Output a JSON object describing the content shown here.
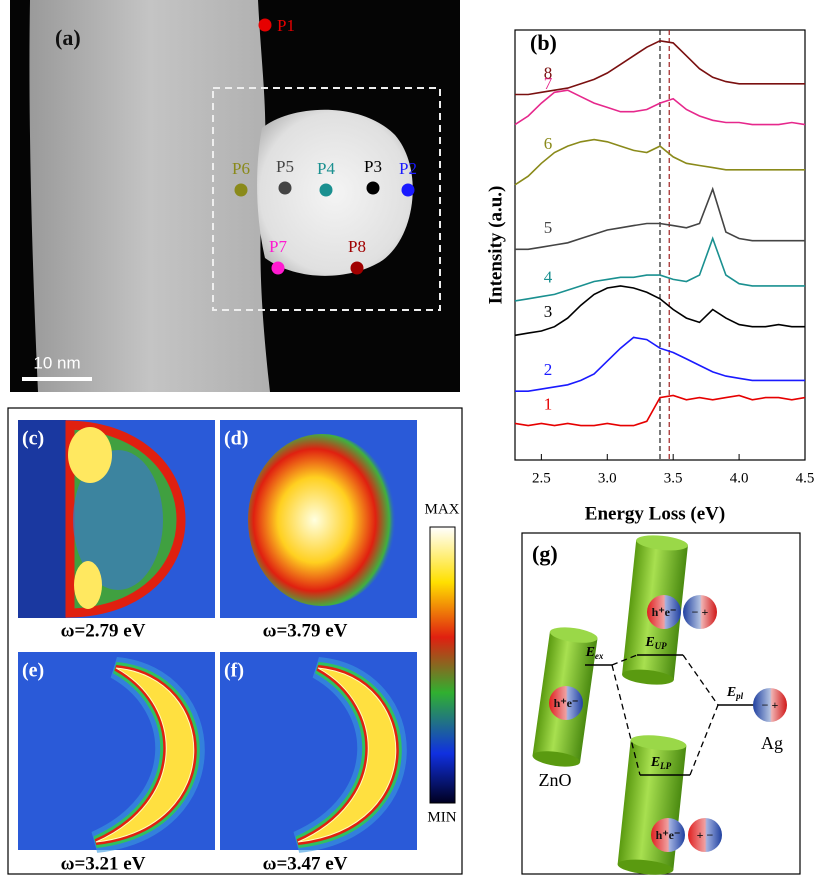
{
  "panel_a": {
    "label": "(a)",
    "scale_bar": "10 nm",
    "points": [
      {
        "label": "P1",
        "color": "#e60000"
      },
      {
        "label": "P2",
        "color": "#1a1aff"
      },
      {
        "label": "P3",
        "color": "#000000"
      },
      {
        "label": "P4",
        "color": "#1a9090"
      },
      {
        "label": "P5",
        "color": "#444444"
      },
      {
        "label": "P6",
        "color": "#8a8a1a"
      },
      {
        "label": "P7",
        "color": "#ff1ad0"
      },
      {
        "label": "P8",
        "color": "#a00000"
      }
    ]
  },
  "chart_data": {
    "type": "line",
    "label": "(b)",
    "x_label": "Energy Loss (eV)",
    "y_label": "Intensity (a.u.)",
    "x": [
      2.3,
      2.4,
      2.5,
      2.6,
      2.7,
      2.8,
      2.9,
      3.0,
      3.1,
      3.2,
      3.3,
      3.4,
      3.5,
      3.6,
      3.7,
      3.8,
      3.9,
      4.0,
      4.1,
      4.2,
      4.3,
      4.4,
      4.5
    ],
    "xlim": [
      2.3,
      4.5
    ],
    "xticks": [
      2.5,
      {
        "value": 3,
        "label": "3.0"
      },
      3.5,
      {
        "value": 4,
        "label": "4.0"
      },
      4.5
    ],
    "ylim": [
      0,
      10
    ],
    "reference_lines": [
      3.4,
      3.47
    ],
    "series": [
      {
        "name": "1",
        "color": "#e60000",
        "values": [
          0.85,
          0.8,
          0.85,
          0.8,
          0.85,
          0.8,
          0.8,
          0.85,
          0.8,
          0.8,
          0.9,
          1.45,
          1.5,
          1.4,
          1.45,
          1.4,
          1.45,
          1.5,
          1.4,
          1.45,
          1.45,
          1.4,
          1.45
        ]
      },
      {
        "name": "2",
        "color": "#1a1aff",
        "values": [
          1.6,
          1.6,
          1.65,
          1.7,
          1.75,
          1.85,
          2.0,
          2.3,
          2.6,
          2.85,
          2.8,
          2.6,
          2.5,
          2.35,
          2.2,
          2.05,
          1.95,
          1.9,
          1.85,
          1.85,
          1.85,
          1.85,
          1.85
        ]
      },
      {
        "name": "3",
        "color": "#000000",
        "values": [
          2.9,
          2.95,
          3.0,
          3.1,
          3.3,
          3.6,
          3.85,
          4.0,
          4.05,
          4.0,
          3.9,
          3.75,
          3.5,
          3.3,
          3.2,
          3.5,
          3.3,
          3.15,
          3.1,
          3.1,
          3.15,
          3.1,
          3.1
        ]
      },
      {
        "name": "4",
        "color": "#1a9090",
        "values": [
          3.7,
          3.75,
          3.8,
          3.85,
          3.95,
          4.05,
          4.15,
          4.2,
          4.25,
          4.25,
          4.3,
          4.3,
          4.2,
          4.15,
          4.3,
          5.15,
          4.3,
          4.1,
          4.05,
          4.05,
          4.05,
          4.05,
          4.05
        ]
      },
      {
        "name": "5",
        "color": "#444444",
        "values": [
          4.9,
          4.9,
          4.95,
          5.0,
          5.05,
          5.15,
          5.25,
          5.35,
          5.4,
          5.45,
          5.5,
          5.5,
          5.45,
          5.4,
          5.5,
          6.3,
          5.3,
          5.15,
          5.1,
          5.1,
          5.1,
          5.1,
          5.1
        ]
      },
      {
        "name": "6",
        "color": "#8a8a1a",
        "values": [
          6.4,
          6.6,
          6.9,
          7.15,
          7.3,
          7.4,
          7.45,
          7.4,
          7.3,
          7.2,
          7.15,
          7.3,
          7.05,
          6.9,
          6.85,
          6.8,
          6.75,
          6.75,
          6.75,
          6.75,
          6.75,
          6.75,
          6.75
        ]
      },
      {
        "name": "7",
        "color": "#e6288c",
        "values": [
          7.8,
          8.0,
          8.3,
          8.55,
          8.6,
          8.45,
          8.3,
          8.2,
          8.1,
          8.1,
          8.15,
          8.3,
          8.4,
          8.15,
          8.0,
          7.9,
          7.85,
          7.85,
          7.8,
          7.8,
          7.8,
          7.85,
          7.8
        ]
      },
      {
        "name": "8",
        "color": "#7a1010",
        "values": [
          8.5,
          8.5,
          8.55,
          8.6,
          8.65,
          8.75,
          8.85,
          9.0,
          9.2,
          9.4,
          9.6,
          9.75,
          9.7,
          9.4,
          9.1,
          8.9,
          8.8,
          8.75,
          8.75,
          8.75,
          8.75,
          8.75,
          8.75
        ]
      }
    ]
  },
  "panel_maps": {
    "labels": [
      "(c)",
      "(d)",
      "(e)",
      "(f)"
    ],
    "captions": [
      "ω=2.79 eV",
      "ω=3.79 eV",
      "ω=3.21 eV",
      "ω=3.47 eV"
    ],
    "colorbar": {
      "max": "MAX",
      "min": "MIN"
    }
  },
  "panel_g": {
    "label": "(g)",
    "zno": "ZnO",
    "ag": "Ag",
    "levels": [
      {
        "symbol": "E",
        "subscript": "ex"
      },
      {
        "symbol": "E",
        "subscript": "UP"
      },
      {
        "symbol": "E",
        "subscript": "LP"
      },
      {
        "symbol": "E",
        "subscript": "pl"
      }
    ],
    "charges": [
      "h⁺e⁻",
      "h⁺e⁻",
      "− +",
      "h⁺e⁻",
      "+ −",
      "− +"
    ]
  }
}
